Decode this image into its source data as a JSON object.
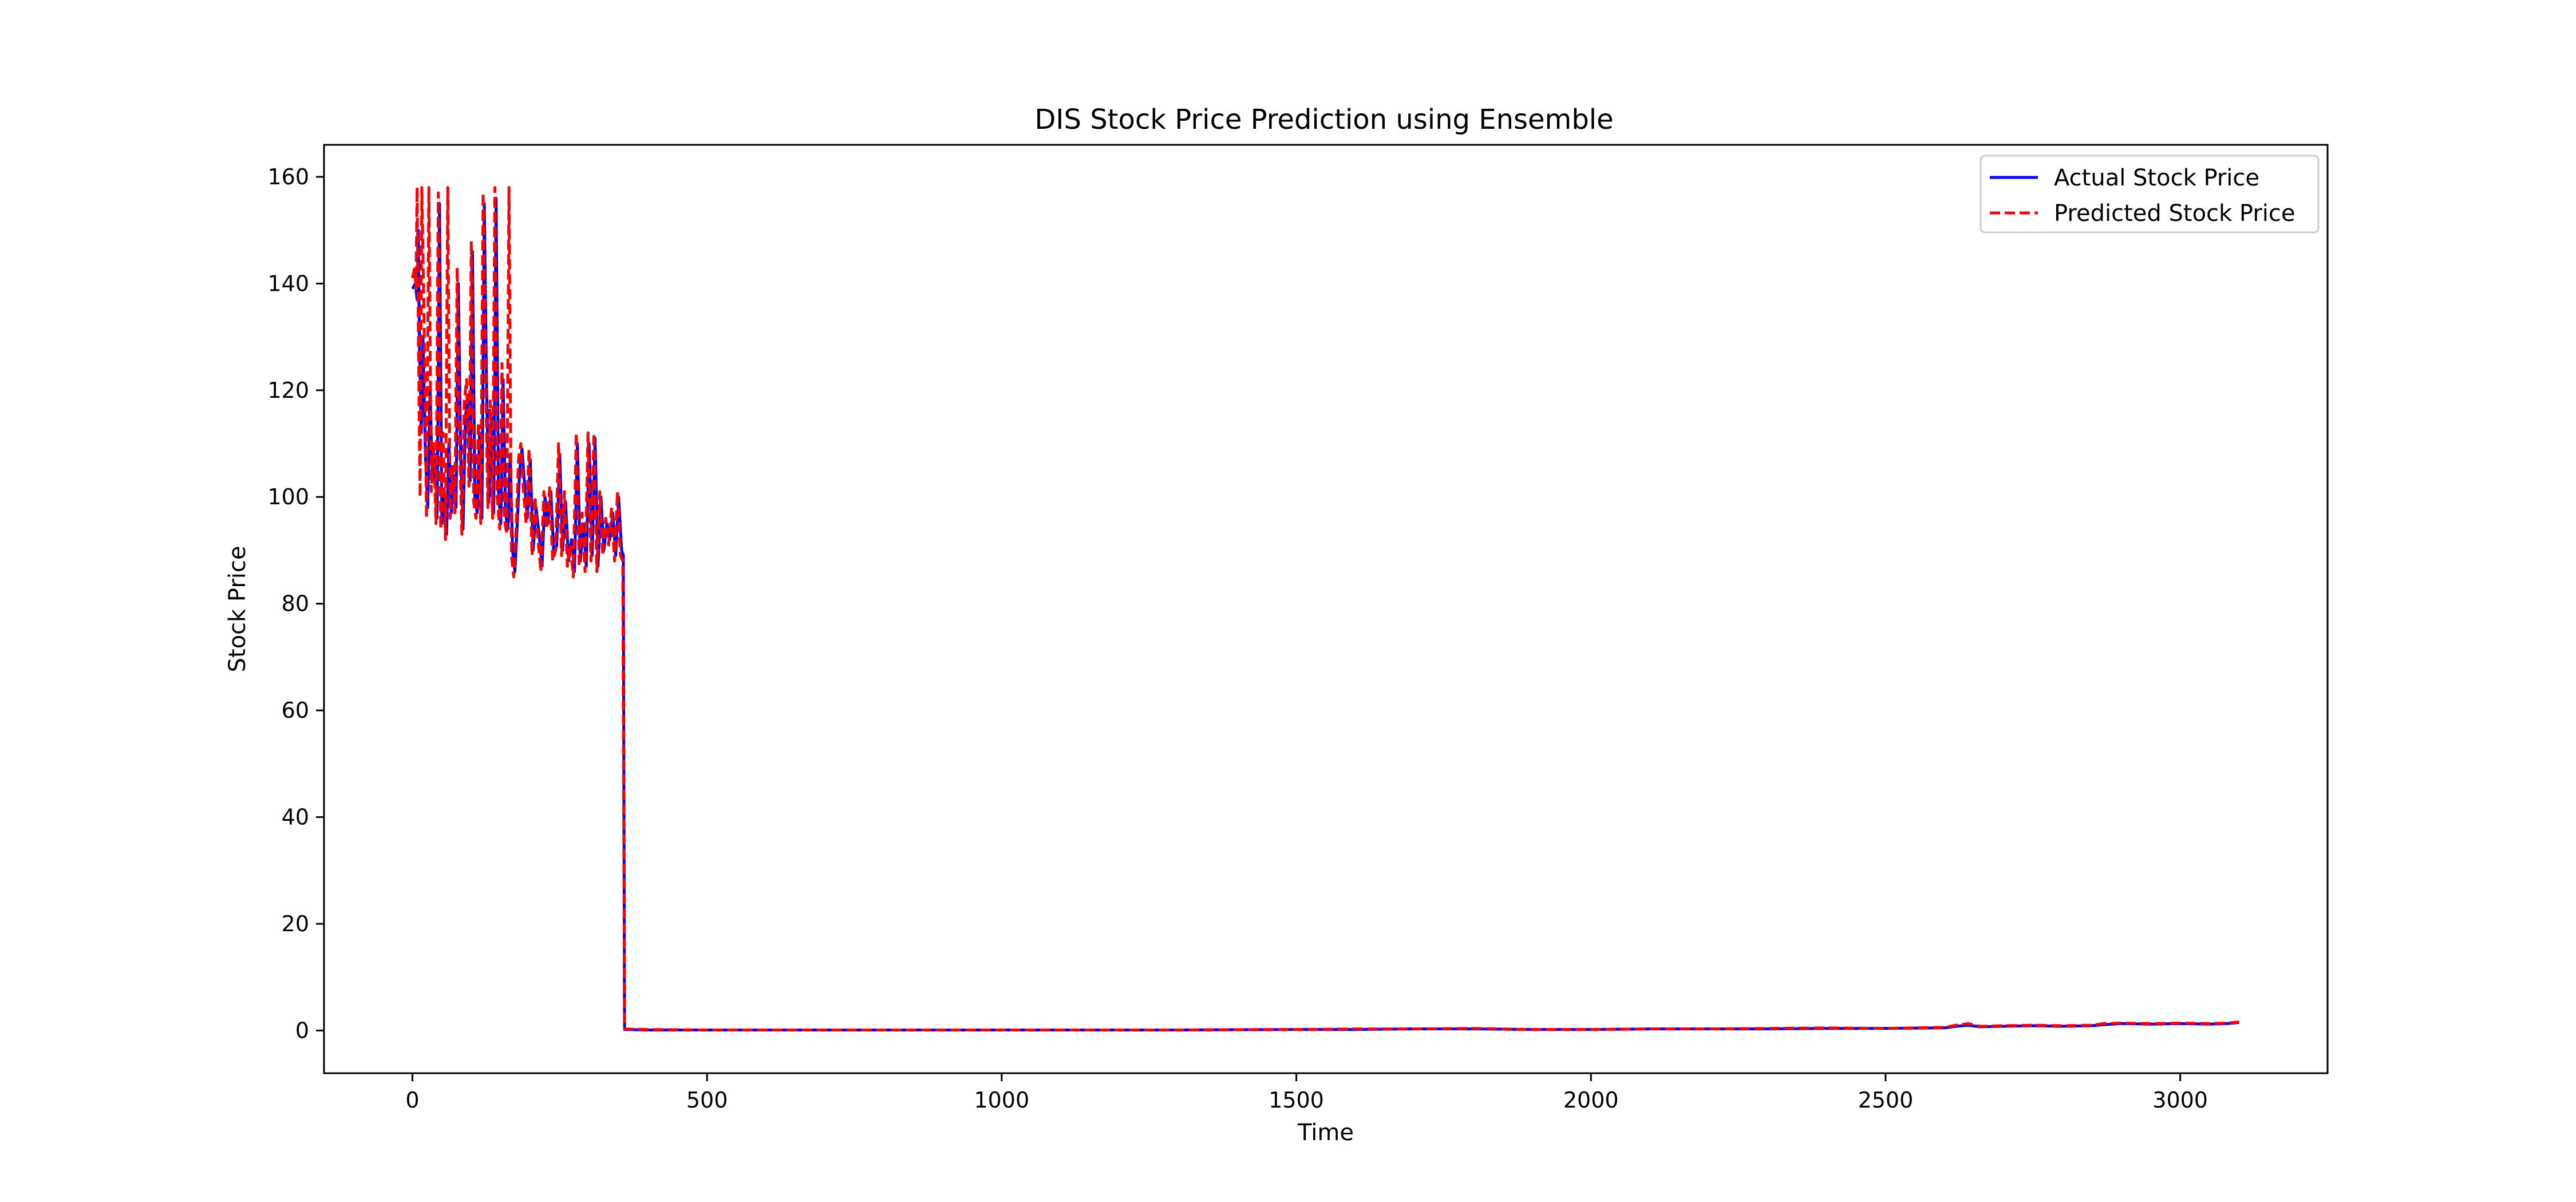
{
  "chart_data": {
    "type": "line",
    "title": "DIS Stock Price Prediction using Ensemble",
    "xlabel": "Time",
    "ylabel": "Stock Price",
    "xlim": [
      -150,
      3250
    ],
    "ylim": [
      -8,
      166
    ],
    "x_ticks": [
      0,
      500,
      1000,
      1500,
      2000,
      2500,
      3000
    ],
    "y_ticks": [
      0,
      20,
      40,
      60,
      80,
      100,
      120,
      140,
      160
    ],
    "grid": false,
    "legend_position": "top-right",
    "series": [
      {
        "name": "Actual Stock Price",
        "color": "#0000ff",
        "line_style": "solid",
        "x": [
          0,
          5,
          8,
          10,
          12,
          15,
          18,
          22,
          26,
          30,
          34,
          38,
          42,
          46,
          50,
          54,
          58,
          62,
          66,
          70,
          74,
          78,
          82,
          86,
          90,
          94,
          98,
          102,
          106,
          110,
          114,
          118,
          122,
          126,
          130,
          134,
          138,
          142,
          146,
          150,
          154,
          158,
          162,
          166,
          170,
          174,
          178,
          182,
          186,
          190,
          195,
          200,
          205,
          210,
          215,
          220,
          225,
          230,
          235,
          240,
          245,
          250,
          255,
          260,
          265,
          270,
          275,
          280,
          285,
          290,
          295,
          300,
          305,
          310,
          315,
          320,
          325,
          330,
          335,
          340,
          345,
          350,
          355,
          358,
          360,
          400,
          500,
          700,
          900,
          1100,
          1300,
          1500,
          1600,
          1700,
          1800,
          1900,
          2000,
          2100,
          2200,
          2300,
          2400,
          2500,
          2600,
          2620,
          2640,
          2660,
          2700,
          2750,
          2800,
          2850,
          2870,
          2900,
          2950,
          3000,
          3050,
          3080,
          3100
        ],
        "values": [
          139,
          140,
          137,
          150,
          128,
          112,
          130,
          108,
          98,
          120,
          103,
          108,
          96,
          155,
          95,
          100,
          93,
          110,
          97,
          104,
          98,
          140,
          108,
          94,
          115,
          119,
          103,
          146,
          100,
          97,
          112,
          96,
          155,
          120,
          99,
          115,
          97,
          156,
          101,
          95,
          122,
          97,
          94,
          108,
          90,
          86,
          95,
          105,
          109,
          103,
          96,
          107,
          90,
          98,
          93,
          87,
          100,
          95,
          101,
          89,
          91,
          108,
          90,
          99,
          88,
          92,
          86,
          110,
          88,
          95,
          87,
          110,
          89,
          111,
          87,
          100,
          90,
          95,
          92,
          97,
          89,
          100,
          90,
          89,
          0.2,
          0.1,
          0.1,
          0.1,
          0.1,
          0.1,
          0.1,
          0.2,
          0.2,
          0.3,
          0.3,
          0.2,
          0.2,
          0.3,
          0.3,
          0.3,
          0.4,
          0.4,
          0.5,
          0.8,
          1.0,
          0.7,
          0.8,
          0.9,
          0.8,
          0.9,
          1.1,
          1.3,
          1.2,
          1.3,
          1.2,
          1.3,
          1.5
        ]
      },
      {
        "name": "Predicted Stock Price",
        "color": "#ff0000",
        "line_style": "dashed",
        "x": [
          0,
          4,
          6,
          8,
          10,
          13,
          16,
          20,
          24,
          28,
          32,
          36,
          40,
          44,
          48,
          52,
          56,
          60,
          64,
          68,
          72,
          76,
          80,
          84,
          88,
          92,
          96,
          100,
          104,
          108,
          112,
          116,
          120,
          124,
          128,
          132,
          136,
          140,
          144,
          148,
          152,
          156,
          160,
          164,
          168,
          172,
          176,
          180,
          184,
          188,
          193,
          198,
          203,
          208,
          213,
          218,
          223,
          228,
          233,
          238,
          243,
          248,
          253,
          258,
          263,
          268,
          273,
          278,
          283,
          288,
          293,
          298,
          303,
          308,
          313,
          318,
          323,
          328,
          333,
          338,
          343,
          348,
          353,
          357,
          360,
          400,
          500,
          700,
          900,
          1100,
          1300,
          1500,
          1600,
          1700,
          1800,
          1900,
          2000,
          2100,
          2200,
          2300,
          2400,
          2500,
          2600,
          2620,
          2640,
          2660,
          2700,
          2750,
          2800,
          2850,
          2870,
          2900,
          2950,
          3000,
          3050,
          3080,
          3100
        ],
        "values": [
          141,
          143,
          139,
          158,
          132,
          100,
          158,
          132,
          96,
          158,
          101,
          110,
          95,
          157,
          94,
          112,
          92,
          158,
          96,
          106,
          97,
          143,
          110,
          93,
          118,
          122,
          102,
          148,
          99,
          96,
          114,
          95,
          157,
          124,
          98,
          118,
          96,
          158,
          100,
          94,
          125,
          96,
          93,
          158,
          89,
          85,
          94,
          107,
          110,
          102,
          95,
          109,
          89,
          100,
          92,
          86,
          101,
          94,
          102,
          88,
          90,
          110,
          89,
          101,
          87,
          91,
          85,
          112,
          87,
          97,
          86,
          112,
          88,
          112,
          86,
          101,
          89,
          96,
          91,
          98,
          88,
          101,
          89,
          88,
          0.3,
          0.2,
          0.1,
          0.1,
          0.1,
          0.1,
          0.1,
          0.2,
          0.3,
          0.3,
          0.4,
          0.2,
          0.2,
          0.3,
          0.3,
          0.4,
          0.5,
          0.4,
          0.6,
          1.0,
          1.3,
          0.8,
          0.9,
          1.0,
          0.9,
          1.0,
          1.3,
          1.4,
          1.3,
          1.4,
          1.3,
          1.4,
          1.6
        ]
      }
    ]
  }
}
